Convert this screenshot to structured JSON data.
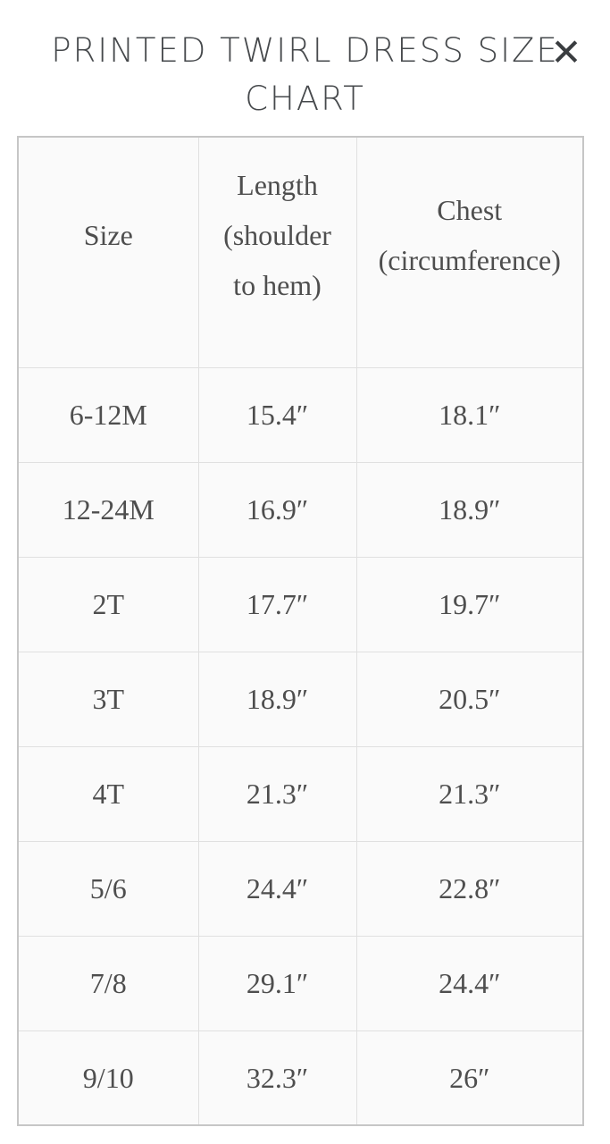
{
  "modal": {
    "title_line1": "PRINTED TWIRL DRESS SIZE",
    "title_line2": "CHART"
  },
  "icons": {
    "close": "✕"
  },
  "size_chart": {
    "columns": [
      "Size",
      "Length (shoulder to hem)",
      "Chest (circumference)"
    ],
    "rows": [
      [
        "6-12M",
        "15.4″",
        "18.1″"
      ],
      [
        "12-24M",
        "16.9″",
        "18.9″"
      ],
      [
        "2T",
        "17.7″",
        "19.7″"
      ],
      [
        "3T",
        "18.9″",
        "20.5″"
      ],
      [
        "4T",
        "21.3″",
        "21.3″"
      ],
      [
        "5/6",
        "24.4″",
        "22.8″"
      ],
      [
        "7/8",
        "29.1″",
        "24.4″"
      ],
      [
        "9/10",
        "32.3″",
        "26″"
      ]
    ]
  },
  "colors": {
    "title_text": "#46494c",
    "table_text": "#4e4e4e",
    "cell_background": "#fafafa",
    "inner_border": "#e0e0e0",
    "outer_border": "#c6c6c6",
    "page_background": "#ffffff"
  }
}
